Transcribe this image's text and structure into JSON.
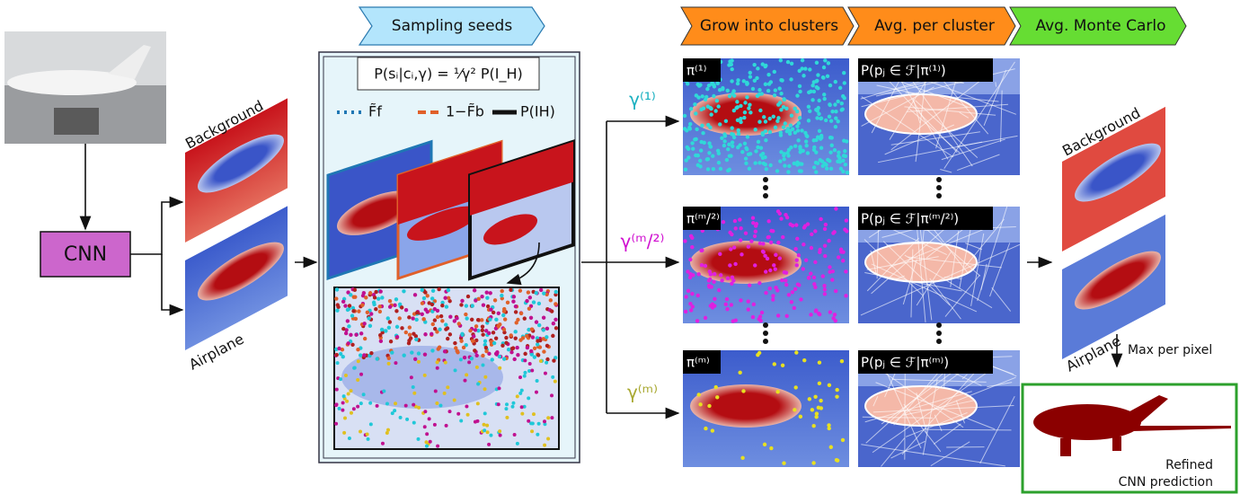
{
  "input": {
    "cnn": "CNN",
    "maps": [
      "Background",
      "Airplane"
    ]
  },
  "steps": [
    "Sampling seeds",
    "Grow into clusters",
    "Avg. per cluster",
    "Avg. Monte Carlo"
  ],
  "sampling": {
    "formula": "P(sᵢ|cᵢ,γ) = ¹⁄γ² P(I_H)",
    "legend": [
      "F̃f",
      "1−F̃b",
      "P(IH)"
    ]
  },
  "gammas": [
    "γ⁽¹⁾",
    "γ⁽ᵐ/²⁾",
    "γ⁽ᵐ⁾"
  ],
  "clusters": [
    "π⁽¹⁾",
    "π⁽ᵐ/²⁾",
    "π⁽ᵐ⁾"
  ],
  "averages": [
    "P(pⱼ ∈ ℱ|π⁽¹⁾)",
    "P(pⱼ ∈ ℱ|π⁽ᵐ/²⁾)",
    "P(pⱼ ∈ ℱ|π⁽ᵐ⁾)"
  ],
  "output": {
    "maps": [
      "Background",
      "Airplane"
    ],
    "step": "Max per pixel",
    "result": [
      "Refined",
      "CNN prediction"
    ]
  }
}
